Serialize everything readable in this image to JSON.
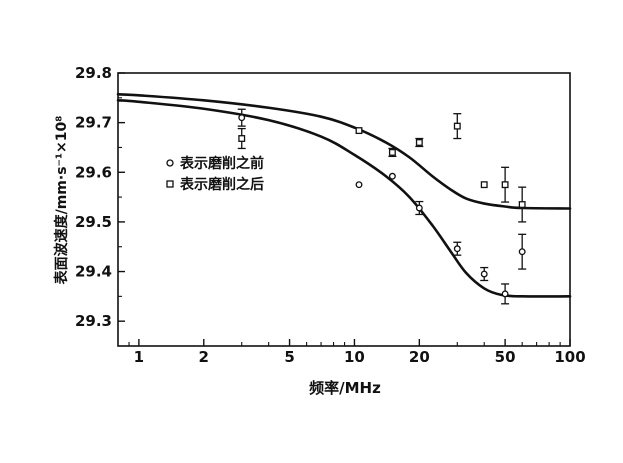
{
  "chart_data": {
    "type": "scatter",
    "xscale": "log",
    "xlim": [
      0.8,
      100
    ],
    "ylim": [
      29.25,
      29.8
    ],
    "xlabel": "频率/MHz",
    "ylabel": "表面波速度/mm·s⁻¹×10⁸",
    "x_ticks": [
      1,
      2,
      5,
      10,
      20,
      50,
      100
    ],
    "y_ticks": [
      "29.3",
      "29.4",
      "29.5",
      "29.6",
      "29.7",
      "29.8"
    ],
    "legend_position": "center-left",
    "series": [
      {
        "name": "表示磨削之前",
        "marker": "circle",
        "points": [
          {
            "x": 3,
            "y": 29.71,
            "err": 0.017
          },
          {
            "x": 10.5,
            "y": 29.575
          },
          {
            "x": 15,
            "y": 29.592
          },
          {
            "x": 20,
            "y": 29.528,
            "err": 0.013
          },
          {
            "x": 30,
            "y": 29.446,
            "err": 0.013
          },
          {
            "x": 40,
            "y": 29.395,
            "err": 0.013
          },
          {
            "x": 50,
            "y": 29.355,
            "err": 0.02
          },
          {
            "x": 60,
            "y": 29.44,
            "err": 0.035
          }
        ],
        "curve": [
          [
            0.8,
            29.745
          ],
          [
            1,
            29.742
          ],
          [
            2,
            29.728
          ],
          [
            4,
            29.705
          ],
          [
            7,
            29.672
          ],
          [
            10,
            29.635
          ],
          [
            14,
            29.592
          ],
          [
            18,
            29.55
          ],
          [
            23,
            29.493
          ],
          [
            28,
            29.44
          ],
          [
            33,
            29.397
          ],
          [
            40,
            29.366
          ],
          [
            48,
            29.353
          ],
          [
            60,
            29.35
          ],
          [
            100,
            29.35
          ]
        ]
      },
      {
        "name": "表示磨削之后",
        "marker": "square",
        "points": [
          {
            "x": 3,
            "y": 29.668,
            "err": 0.02
          },
          {
            "x": 10.5,
            "y": 29.684
          },
          {
            "x": 15,
            "y": 29.64,
            "err": 0.008
          },
          {
            "x": 20,
            "y": 29.66,
            "err": 0.008
          },
          {
            "x": 30,
            "y": 29.693,
            "err": 0.025
          },
          {
            "x": 40,
            "y": 29.575
          },
          {
            "x": 50,
            "y": 29.575,
            "err": 0.035
          },
          {
            "x": 60,
            "y": 29.535,
            "err": 0.035
          }
        ],
        "curve": [
          [
            0.8,
            29.757
          ],
          [
            1,
            29.755
          ],
          [
            2,
            29.745
          ],
          [
            4,
            29.73
          ],
          [
            7,
            29.712
          ],
          [
            10,
            29.69
          ],
          [
            14,
            29.66
          ],
          [
            18,
            29.63
          ],
          [
            23,
            29.592
          ],
          [
            28,
            29.565
          ],
          [
            33,
            29.547
          ],
          [
            40,
            29.537
          ],
          [
            50,
            29.531
          ],
          [
            60,
            29.528
          ],
          [
            100,
            29.527
          ]
        ]
      }
    ]
  }
}
